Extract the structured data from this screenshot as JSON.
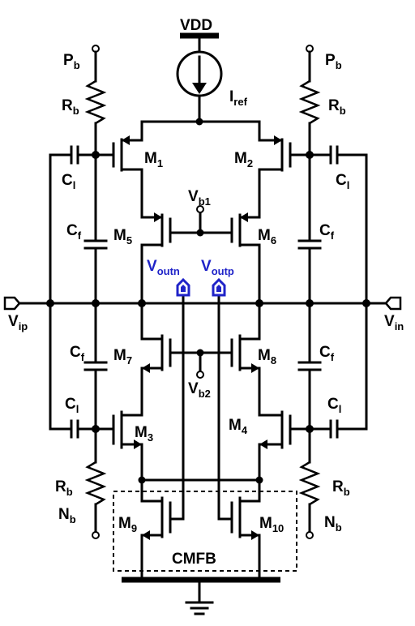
{
  "labels": {
    "vdd": "VDD",
    "iref": [
      "I",
      "ref"
    ],
    "pb_left": [
      "P",
      "b"
    ],
    "pb_right": [
      "P",
      "b"
    ],
    "rb_left_top": [
      "R",
      "b"
    ],
    "rb_right_top": [
      "R",
      "b"
    ],
    "rb_left_bot": [
      "R",
      "b"
    ],
    "rb_right_bot": [
      "R",
      "b"
    ],
    "nb_left": [
      "N",
      "b"
    ],
    "nb_right": [
      "N",
      "b"
    ],
    "cl_left_top": [
      "C",
      "l"
    ],
    "cl_right_top": [
      "C",
      "l"
    ],
    "cl_left_bot": [
      "C",
      "l"
    ],
    "cl_right_bot": [
      "C",
      "l"
    ],
    "cf_left_top": [
      "C",
      "f"
    ],
    "cf_right_top": [
      "C",
      "f"
    ],
    "cf_left_bot": [
      "C",
      "f"
    ],
    "cf_right_bot": [
      "C",
      "f"
    ],
    "m1": [
      "M",
      "1"
    ],
    "m2": [
      "M",
      "2"
    ],
    "m3": [
      "M",
      "3"
    ],
    "m4": [
      "M",
      "4"
    ],
    "m5": [
      "M",
      "5"
    ],
    "m6": [
      "M",
      "6"
    ],
    "m7": [
      "M",
      "7"
    ],
    "m8": [
      "M",
      "8"
    ],
    "m9": [
      "M",
      "9"
    ],
    "m10": [
      "M",
      "10"
    ],
    "vb1": [
      "V",
      "b1"
    ],
    "vb2": [
      "V",
      "b2"
    ],
    "voutn": [
      "V",
      "outn"
    ],
    "voutp": [
      "V",
      "outp"
    ],
    "vip": [
      "V",
      "ip"
    ],
    "vin": [
      "V",
      "in"
    ],
    "cmfb": "CMFB"
  },
  "colors": {
    "wire": "#000000",
    "output_label": "#1f23c8"
  }
}
